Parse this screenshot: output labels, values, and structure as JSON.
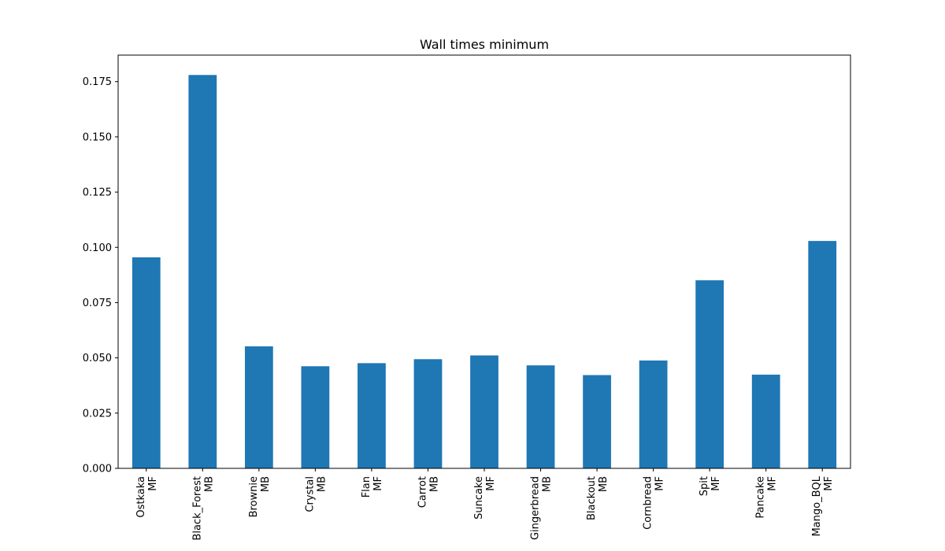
{
  "chart_data": {
    "type": "bar",
    "title": "Wall times minimum",
    "xlabel": "",
    "ylabel": "",
    "ylim": [
      0,
      0.187
    ],
    "yticks": [
      0.0,
      0.025,
      0.05,
      0.075,
      0.1,
      0.125,
      0.15,
      0.175
    ],
    "ytick_labels": [
      "0.000",
      "0.025",
      "0.050",
      "0.075",
      "0.100",
      "0.125",
      "0.150",
      "0.175"
    ],
    "grid": false,
    "legend": "none",
    "bar_color": "#1f77b4",
    "categories": [
      {
        "name": "Ostkaka",
        "type": "MF"
      },
      {
        "name": "Black_Forest",
        "type": "MB"
      },
      {
        "name": "Brownie",
        "type": "MB"
      },
      {
        "name": "Crystal",
        "type": "MB"
      },
      {
        "name": "Flan",
        "type": "MF"
      },
      {
        "name": "Carrot",
        "type": "MB"
      },
      {
        "name": "Suncake",
        "type": "MF"
      },
      {
        "name": "Gingerbread",
        "type": "MB"
      },
      {
        "name": "Blackout",
        "type": "MB"
      },
      {
        "name": "Cornbread",
        "type": "MF"
      },
      {
        "name": "Spit",
        "type": "MF"
      },
      {
        "name": "Pancake",
        "type": "MF"
      },
      {
        "name": "Mango_BQL",
        "type": "MF"
      }
    ],
    "values": [
      0.0955,
      0.178,
      0.0552,
      0.0462,
      0.0476,
      0.0494,
      0.0511,
      0.0466,
      0.0422,
      0.0488,
      0.0851,
      0.0424,
      0.1029
    ]
  }
}
